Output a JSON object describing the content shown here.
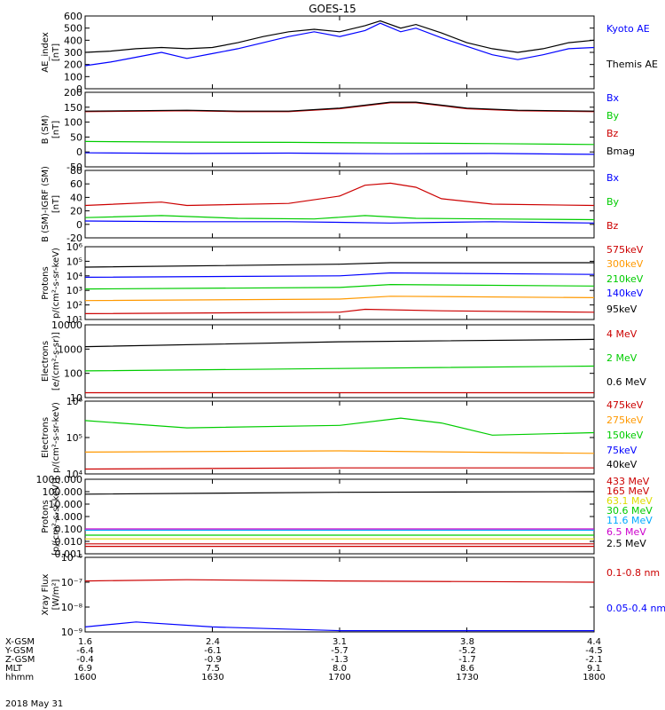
{
  "title": "GOES-15",
  "date_label": "2018 May 31",
  "colors": {
    "black": "#000000",
    "blue": "#0000ff",
    "green": "#00cc00",
    "red": "#cc0000",
    "orange": "#ff9900",
    "cyan": "#00aaff",
    "magenta": "#cc00cc",
    "yellow": "#dddd00"
  },
  "footer": {
    "rows": [
      {
        "label": "X-GSM",
        "values": [
          "1.6",
          "2.4",
          "3.1",
          "3.8",
          "4.4"
        ]
      },
      {
        "label": "Y-GSM",
        "values": [
          "-6.4",
          "-6.1",
          "-5.7",
          "-5.2",
          "-4.5"
        ]
      },
      {
        "label": "Z-GSM",
        "values": [
          "-0.4",
          "-0.9",
          "-1.3",
          "-1.7",
          "-2.1"
        ]
      },
      {
        "label": "MLT",
        "values": [
          "6.9",
          "7.5",
          "8.0",
          "8.6",
          "9.1"
        ]
      },
      {
        "label": "hhmm",
        "values": [
          "1600",
          "1630",
          "1700",
          "1730",
          "1800"
        ]
      }
    ]
  },
  "chart_data": [
    {
      "type": "line",
      "ylabel": [
        "AE_index",
        "[nT]"
      ],
      "ylim": [
        0,
        600
      ],
      "yticks": [
        "0",
        "100",
        "200",
        "300",
        "400",
        "500",
        "600"
      ],
      "x_range": [
        "1600",
        "1800"
      ],
      "series": [
        {
          "name": "Kyoto AE",
          "color": "#0000ff",
          "points": [
            [
              0,
              190
            ],
            [
              0.05,
              220
            ],
            [
              0.1,
              260
            ],
            [
              0.15,
              300
            ],
            [
              0.2,
              250
            ],
            [
              0.25,
              290
            ],
            [
              0.3,
              330
            ],
            [
              0.35,
              380
            ],
            [
              0.4,
              430
            ],
            [
              0.45,
              470
            ],
            [
              0.5,
              430
            ],
            [
              0.55,
              480
            ],
            [
              0.58,
              540
            ],
            [
              0.62,
              470
            ],
            [
              0.65,
              500
            ],
            [
              0.7,
              420
            ],
            [
              0.75,
              350
            ],
            [
              0.8,
              280
            ],
            [
              0.85,
              240
            ],
            [
              0.9,
              280
            ],
            [
              0.95,
              330
            ],
            [
              1,
              340
            ]
          ]
        },
        {
          "name": "Themis AE",
          "color": "#000000",
          "points": [
            [
              0,
              300
            ],
            [
              0.05,
              310
            ],
            [
              0.1,
              330
            ],
            [
              0.15,
              340
            ],
            [
              0.2,
              330
            ],
            [
              0.25,
              340
            ],
            [
              0.3,
              380
            ],
            [
              0.35,
              430
            ],
            [
              0.4,
              470
            ],
            [
              0.45,
              490
            ],
            [
              0.5,
              470
            ],
            [
              0.55,
              520
            ],
            [
              0.58,
              560
            ],
            [
              0.62,
              500
            ],
            [
              0.65,
              530
            ],
            [
              0.7,
              460
            ],
            [
              0.75,
              380
            ],
            [
              0.8,
              330
            ],
            [
              0.85,
              300
            ],
            [
              0.9,
              330
            ],
            [
              0.95,
              380
            ],
            [
              1,
              400
            ]
          ]
        }
      ]
    },
    {
      "type": "line",
      "ylabel": [
        "B (SM)",
        "[nT]"
      ],
      "ylim": [
        -50,
        200
      ],
      "yticks": [
        "-50",
        "0",
        "50",
        "100",
        "150",
        "200"
      ],
      "series": [
        {
          "name": "Bx",
          "color": "#0000ff",
          "points": [
            [
              0,
              -3
            ],
            [
              0.2,
              -5
            ],
            [
              0.4,
              -4
            ],
            [
              0.6,
              -6
            ],
            [
              0.8,
              -5
            ],
            [
              1,
              -8
            ]
          ]
        },
        {
          "name": "By",
          "color": "#00cc00",
          "points": [
            [
              0,
              35
            ],
            [
              0.2,
              33
            ],
            [
              0.4,
              32
            ],
            [
              0.6,
              30
            ],
            [
              0.8,
              28
            ],
            [
              1,
              25
            ]
          ]
        },
        {
          "name": "Bz",
          "color": "#cc0000",
          "points": [
            [
              0,
              135
            ],
            [
              0.2,
              138
            ],
            [
              0.3,
              135
            ],
            [
              0.4,
              135
            ],
            [
              0.5,
              145
            ],
            [
              0.6,
              165
            ],
            [
              0.65,
              165
            ],
            [
              0.75,
              145
            ],
            [
              0.85,
              138
            ],
            [
              1,
              135
            ]
          ]
        },
        {
          "name": "Bmag",
          "color": "#000000",
          "points": [
            [
              0,
              137
            ],
            [
              0.2,
              140
            ],
            [
              0.3,
              137
            ],
            [
              0.4,
              137
            ],
            [
              0.5,
              147
            ],
            [
              0.6,
              167
            ],
            [
              0.65,
              167
            ],
            [
              0.75,
              147
            ],
            [
              0.85,
              140
            ],
            [
              1,
              137
            ]
          ]
        }
      ]
    },
    {
      "type": "line",
      "ylabel": [
        "B (SM)-IGRF (SM)",
        "[nT]"
      ],
      "ylim": [
        -20,
        80
      ],
      "yticks": [
        "-20",
        "0",
        "20",
        "40",
        "60",
        "80"
      ],
      "series": [
        {
          "name": "Bx",
          "color": "#0000ff",
          "points": [
            [
              0,
              5
            ],
            [
              0.2,
              4
            ],
            [
              0.4,
              4
            ],
            [
              0.6,
              2
            ],
            [
              0.7,
              3
            ],
            [
              0.8,
              4
            ],
            [
              1,
              2
            ]
          ]
        },
        {
          "name": "By",
          "color": "#00cc00",
          "points": [
            [
              0,
              10
            ],
            [
              0.15,
              13
            ],
            [
              0.3,
              9
            ],
            [
              0.45,
              8
            ],
            [
              0.55,
              13
            ],
            [
              0.65,
              9
            ],
            [
              0.8,
              8
            ],
            [
              1,
              7
            ]
          ]
        },
        {
          "name": "Bz",
          "color": "#cc0000",
          "points": [
            [
              0,
              28
            ],
            [
              0.15,
              33
            ],
            [
              0.2,
              28
            ],
            [
              0.4,
              31
            ],
            [
              0.5,
              42
            ],
            [
              0.55,
              58
            ],
            [
              0.6,
              61
            ],
            [
              0.65,
              55
            ],
            [
              0.7,
              38
            ],
            [
              0.8,
              30
            ],
            [
              1,
              28
            ]
          ]
        }
      ]
    },
    {
      "type": "line",
      "log": true,
      "ylabel": [
        "Protons",
        "p/(cm²-s-sr-keV)"
      ],
      "ylim": [
        1,
        6
      ],
      "yticks": [
        "10¹",
        "10²",
        "10³",
        "10⁴",
        "10⁵",
        "10⁶"
      ],
      "series": [
        {
          "name": "575keV",
          "color": "#cc0000",
          "points": [
            [
              0,
              1.4
            ],
            [
              0.5,
              1.5
            ],
            [
              0.55,
              1.7
            ],
            [
              0.7,
              1.6
            ],
            [
              1,
              1.5
            ]
          ]
        },
        {
          "name": "300keV",
          "color": "#ff9900",
          "points": [
            [
              0,
              2.3
            ],
            [
              0.5,
              2.4
            ],
            [
              0.6,
              2.6
            ],
            [
              1,
              2.5
            ]
          ]
        },
        {
          "name": "210keV",
          "color": "#00cc00",
          "points": [
            [
              0,
              3.1
            ],
            [
              0.5,
              3.2
            ],
            [
              0.6,
              3.4
            ],
            [
              1,
              3.3
            ]
          ]
        },
        {
          "name": "140keV",
          "color": "#0000ff",
          "points": [
            [
              0,
              3.9
            ],
            [
              0.5,
              4.0
            ],
            [
              0.6,
              4.2
            ],
            [
              1,
              4.1
            ]
          ]
        },
        {
          "name": "95keV",
          "color": "#000000",
          "points": [
            [
              0,
              4.6
            ],
            [
              0.5,
              4.8
            ],
            [
              0.6,
              4.9
            ],
            [
              1,
              4.9
            ]
          ]
        }
      ]
    },
    {
      "type": "line",
      "log": true,
      "ylabel": [
        "Electrons",
        "[e/(cm²-s-sr)]"
      ],
      "ylim": [
        1,
        4
      ],
      "yticks": [
        "10",
        "100",
        "1000",
        "10000"
      ],
      "series": [
        {
          "name": "4 MeV",
          "color": "#cc0000",
          "points": [
            [
              0,
              1.2
            ],
            [
              0.5,
              1.2
            ],
            [
              1,
              1.2
            ]
          ]
        },
        {
          "name": "2 MeV",
          "color": "#00cc00",
          "points": [
            [
              0,
              2.1
            ],
            [
              0.5,
              2.2
            ],
            [
              1,
              2.3
            ]
          ]
        },
        {
          "name": "0.6 MeV",
          "color": "#000000",
          "points": [
            [
              0,
              3.1
            ],
            [
              0.5,
              3.3
            ],
            [
              1,
              3.4
            ]
          ]
        }
      ]
    },
    {
      "type": "line",
      "log": true,
      "ylabel": [
        "Electrons",
        "p/(cm²-s-sr-keV)"
      ],
      "ylim": [
        3,
        6
      ],
      "yticks": [
        "10⁴",
        "10⁵",
        "10⁶"
      ],
      "series": [
        {
          "name": "475keV",
          "color": "#cc0000",
          "points": [
            [
              0,
              3.2
            ],
            [
              0.5,
              3.25
            ],
            [
              1,
              3.25
            ]
          ]
        },
        {
          "name": "275keV",
          "color": "#ff9900",
          "points": [
            [
              0,
              3.9
            ],
            [
              0.5,
              3.95
            ],
            [
              1,
              3.85
            ]
          ]
        },
        {
          "name": "150keV",
          "color": "#00cc00",
          "points": [
            [
              0,
              5.2
            ],
            [
              0.2,
              4.9
            ],
            [
              0.5,
              5.0
            ],
            [
              0.62,
              5.3
            ],
            [
              0.7,
              5.1
            ],
            [
              0.8,
              4.6
            ],
            [
              1,
              4.7
            ]
          ]
        },
        {
          "name": "75keV",
          "color": "#0000ff",
          "points": []
        },
        {
          "name": "40keV",
          "color": "#000000",
          "points": []
        }
      ]
    },
    {
      "type": "line",
      "log": true,
      "ylabel": [
        "Protons",
        "[p/(cm²-s-sr-keV)]"
      ],
      "ylim": [
        -3,
        3
      ],
      "yticks": [
        "0.001",
        "0.010",
        "0.100",
        "1.000",
        "10.000",
        "100.000",
        "1000.000"
      ],
      "series": [
        {
          "name": "433 MeV",
          "color": "#cc0000",
          "points": [
            [
              0,
              -2.4
            ],
            [
              1,
              -2.4
            ]
          ]
        },
        {
          "name": "165 MeV",
          "color": "#cc0000",
          "points": [
            [
              0,
              -2.2
            ],
            [
              1,
              -2.2
            ]
          ]
        },
        {
          "name": "63.1 MeV",
          "color": "#dddd00",
          "points": [
            [
              0,
              -1.8
            ],
            [
              1,
              -1.8
            ]
          ]
        },
        {
          "name": "30.6 MeV",
          "color": "#00cc00",
          "points": [
            [
              0,
              -1.5
            ],
            [
              1,
              -1.5
            ]
          ]
        },
        {
          "name": "11.6 MeV",
          "color": "#00aaff",
          "points": [
            [
              0,
              -1.1
            ],
            [
              1,
              -1.1
            ]
          ]
        },
        {
          "name": "6.5 MeV",
          "color": "#cc00cc",
          "points": [
            [
              0,
              -1.0
            ],
            [
              1,
              -1.0
            ]
          ]
        },
        {
          "name": "2.5 MeV",
          "color": "#000000",
          "points": [
            [
              0,
              1.8
            ],
            [
              0.5,
              1.95
            ],
            [
              1,
              2.0
            ]
          ]
        }
      ]
    },
    {
      "type": "line",
      "log": true,
      "ylabel": [
        "Xray Flux",
        "[W/m²]"
      ],
      "ylim": [
        -9,
        -6
      ],
      "yticks": [
        "10⁻⁹",
        "10⁻⁸",
        "10⁻⁷",
        "10⁻⁶"
      ],
      "series": [
        {
          "name": "0.1-0.8 nm",
          "color": "#cc0000",
          "points": [
            [
              0,
              -6.95
            ],
            [
              0.2,
              -6.9
            ],
            [
              0.5,
              -6.95
            ],
            [
              1,
              -7.0
            ]
          ]
        },
        {
          "name": "0.05-0.4 nm",
          "color": "#0000ff",
          "points": [
            [
              0,
              -8.8
            ],
            [
              0.1,
              -8.6
            ],
            [
              0.25,
              -8.8
            ],
            [
              0.5,
              -8.95
            ],
            [
              1,
              -8.95
            ]
          ]
        }
      ]
    }
  ]
}
